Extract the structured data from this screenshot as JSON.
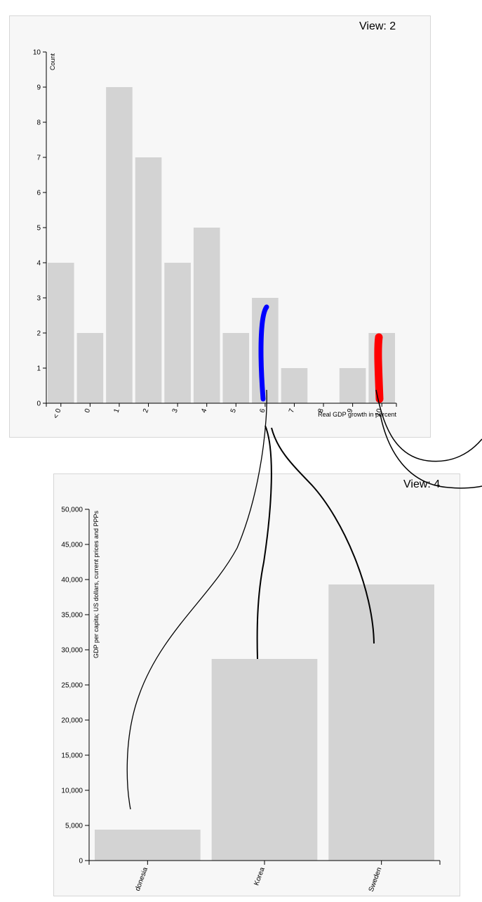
{
  "views": {
    "top_label": "View: 2",
    "bottom_label": "View: 4"
  },
  "chart_data": [
    {
      "type": "bar",
      "categories": [
        "< 0",
        "0",
        "1",
        "2",
        "3",
        "4",
        "5",
        "6",
        "7",
        "8",
        "9",
        "10"
      ],
      "values": [
        4,
        2,
        9,
        7,
        4,
        5,
        2,
        3,
        1,
        0,
        1,
        2
      ],
      "xlabel": "Real GDP growth in percent",
      "ylabel": "Count",
      "ylim": [
        0,
        10
      ],
      "yticks": [
        "0",
        "1",
        "2",
        "3",
        "4",
        "5",
        "6",
        "7",
        "8",
        "9",
        "10"
      ],
      "grid": false,
      "bar_color": "#d3d3d3"
    },
    {
      "type": "bar",
      "categories": [
        "donesia",
        "Korea",
        "Sweden"
      ],
      "values": [
        4400,
        28700,
        39300
      ],
      "xlabel": "",
      "ylabel": "GDP per capita; US dollars, current prices and PPPs",
      "ylim": [
        0,
        50000
      ],
      "yticks": [
        "0",
        "5,000",
        "10,000",
        "15,000",
        "20,000",
        "25,000",
        "30,000",
        "35,000",
        "40,000",
        "45,000",
        "50,000"
      ],
      "grid": false,
      "bar_color": "#d3d3d3"
    }
  ],
  "annotations": {
    "highlight_colors": [
      "#0000ff",
      "#ff0000"
    ],
    "stroke_color": "#000000"
  }
}
